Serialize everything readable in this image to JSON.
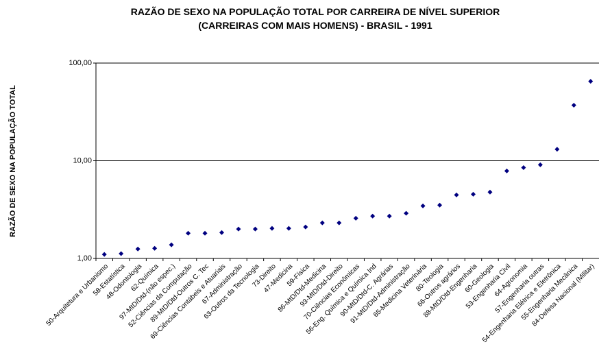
{
  "chart_data": {
    "type": "scatter",
    "title": [
      "RAZÃO DE SEXO NA POPULAÇÃO TOTAL POR CARREIRA DE NÍVEL SUPERIOR",
      "(CARREIRAS COM MAIS HOMENS) - BRASIL - 1991"
    ],
    "y_label": "RAZÃO DE SEXO NA POPULAÇÃO TOTAL",
    "categories": [
      "50-Arquitetura e Urbanismo",
      "58-Estatística",
      "48-Odontologia",
      "62-Química",
      "97-MtD/Dtd-(não espec.)",
      "52-Ciências da Computação",
      "89-MtD/Dtd-Outros C. Tec",
      "69-Ciências Contábeis e Atuariais",
      "67-Administração",
      "63-Outros da Tecnologia",
      "73-Direito",
      "47-Medicina",
      "59-Física",
      "86-MtD/Dtd-Medicina",
      "93-MtD/Dtd-Direito",
      "70-Ciências Econômicas",
      "56-Eng. Química e Química Ind",
      "90-MtD/Dtd-C. Agrárias",
      "91-MtD/Dtd-Administração",
      "65-Medicina Veterinária",
      "80-Teologia",
      "66-Outros agrários",
      "88-MtD/Dtd-Engenharia",
      "60-Geologia",
      "53-Engenharia Civil",
      "64-Agronomia",
      "57-Engenharia outras",
      "54-Engenharia Elétrica e Eletrônica",
      "55-Engenharia Mecânica",
      "84-Defesa Nacional (Militar)"
    ],
    "values": [
      1.1,
      1.12,
      1.25,
      1.27,
      1.38,
      1.81,
      1.81,
      1.84,
      2.0,
      2.0,
      2.03,
      2.03,
      2.1,
      2.31,
      2.31,
      2.58,
      2.71,
      2.71,
      2.9,
      3.45,
      3.51,
      4.47,
      4.54,
      4.77,
      7.86,
      8.5,
      9.1,
      13.1,
      37,
      65
    ],
    "color": "#000080",
    "ylim": [
      1,
      100
    ],
    "yticks": [
      {
        "value": 1,
        "label": "1,00"
      },
      {
        "value": 10,
        "label": "10,00"
      },
      {
        "value": 100,
        "label": "100,00"
      }
    ],
    "log_y": true,
    "grid": true
  }
}
